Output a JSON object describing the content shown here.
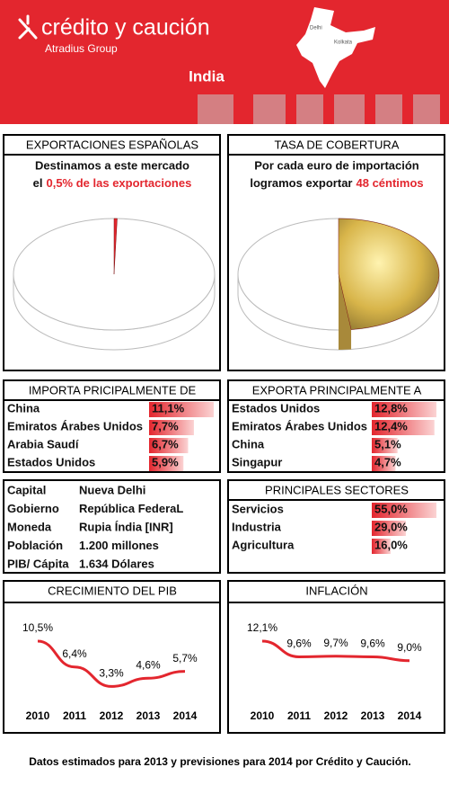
{
  "header": {
    "brand": "crédito y caución",
    "group": "Atradius Group",
    "country": "India",
    "map_labels": [
      "Delhi",
      "Kolkata"
    ]
  },
  "exports": {
    "title": "EXPORTACIONES ESPAÑOLAS",
    "line1": "Destinamos a este mercado",
    "line2": "el",
    "highlight": "0,5% de las exportaciones",
    "value": 0.5
  },
  "coverage": {
    "title": "TASA DE COBERTURA",
    "line1": "Por cada euro de importación",
    "line2": "logramos exportar",
    "highlight": "48 céntimos",
    "value": 48
  },
  "imports": {
    "title": "IMPORTA PRICIPALMENTE DE",
    "names": [
      "China",
      "Emiratos Árabes Unidos",
      "Arabia Saudí",
      "Estados Unidos"
    ],
    "values": [
      11.1,
      7.7,
      6.7,
      5.9
    ],
    "value_labels": [
      "11,1%",
      "7,7%",
      "6,7%",
      "5,9%"
    ]
  },
  "exports_to": {
    "title": "EXPORTA PRINCIPALMENTE A",
    "names": [
      "Estados Unidos",
      "Emiratos Árabes Unidos",
      "China",
      "Singapur"
    ],
    "values": [
      12.8,
      12.4,
      5.1,
      4.7
    ],
    "value_labels": [
      "12,8%",
      "12,4%",
      "5,1%",
      "4,7%"
    ]
  },
  "info": {
    "rows": [
      [
        "Capital",
        "Nueva Delhi"
      ],
      [
        "Gobierno",
        "República FederaL"
      ],
      [
        "Moneda",
        "Rupia Índia [INR]"
      ],
      [
        "Población",
        "1.200 millones"
      ],
      [
        "PIB/ Cápita",
        "1.634 Dólares"
      ]
    ]
  },
  "sectors": {
    "title": "PRINCIPALES SECTORES",
    "names": [
      "Servicios",
      "Industria",
      "Agricultura"
    ],
    "values": [
      55.0,
      29.0,
      16.0
    ],
    "value_labels": [
      "55,0%",
      "29,0%",
      "16,0%"
    ]
  },
  "gdp": {
    "type": "line",
    "title": "CRECIMIENTO DEL PIB",
    "categories": [
      "2010",
      "2011",
      "2012",
      "2013",
      "2014"
    ],
    "values": [
      10.5,
      6.4,
      3.3,
      4.6,
      5.7
    ],
    "value_labels": [
      "10,5%",
      "6,4%",
      "3,3%",
      "4,6%",
      "5,7%"
    ],
    "color": "#e3262e"
  },
  "inflation": {
    "type": "line",
    "title": "INFLACIÓN",
    "categories": [
      "2010",
      "2011",
      "2012",
      "2013",
      "2014"
    ],
    "values": [
      12.1,
      9.6,
      9.7,
      9.6,
      9.0
    ],
    "value_labels": [
      "12,1%",
      "9,6%",
      "9,7%",
      "9,6%",
      "9,0%"
    ],
    "color": "#e3262e"
  },
  "footer": "Datos estimados para 2013 y previsiones para 2014 por Crédito y Caución."
}
